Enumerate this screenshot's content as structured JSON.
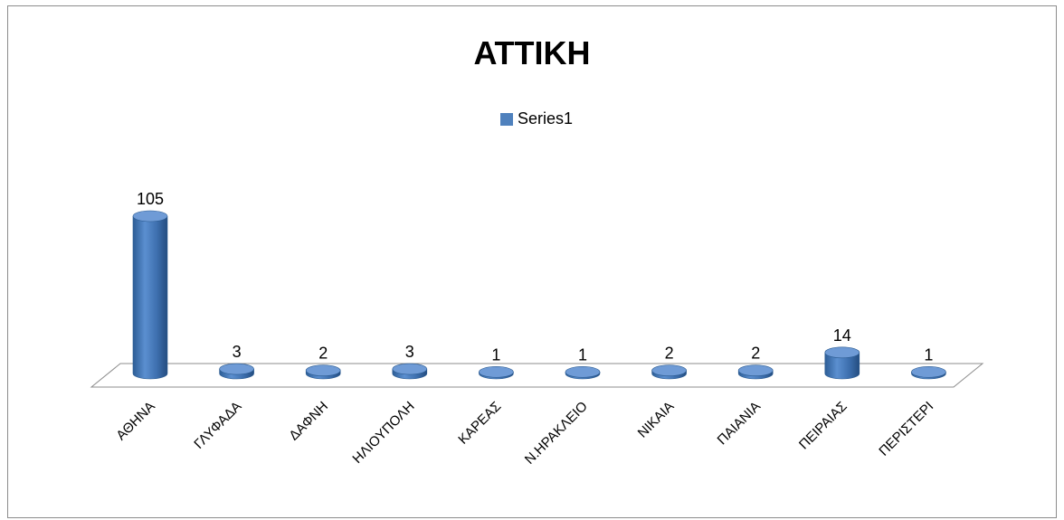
{
  "chart_data": {
    "type": "bar",
    "title": "ΑΤΤΙΚΗ",
    "legend": {
      "position": "top",
      "entries": [
        "Series1"
      ]
    },
    "categories": [
      "ΑΘΗΝΑ",
      "ΓΛΥΦΑΔΑ",
      "ΔΑΦΝΗ",
      "ΗΛΙΟΥΠΟΛΗ",
      "ΚΑΡΕΑΣ",
      "Ν.ΗΡΑΚΛΕΙΟ",
      "ΝΙΚΑΙΑ",
      "ΠΑΙΑΝΙΑ",
      "ΠΕΙΡΑΙΑΣ",
      "ΠΕΡΙΣΤΕΡΙ"
    ],
    "series": [
      {
        "name": "Series1",
        "values": [
          105,
          3,
          2,
          3,
          1,
          1,
          2,
          2,
          14,
          1
        ],
        "color": "#4f81bd"
      }
    ],
    "bar_shape": "cylinder",
    "grid": false
  }
}
